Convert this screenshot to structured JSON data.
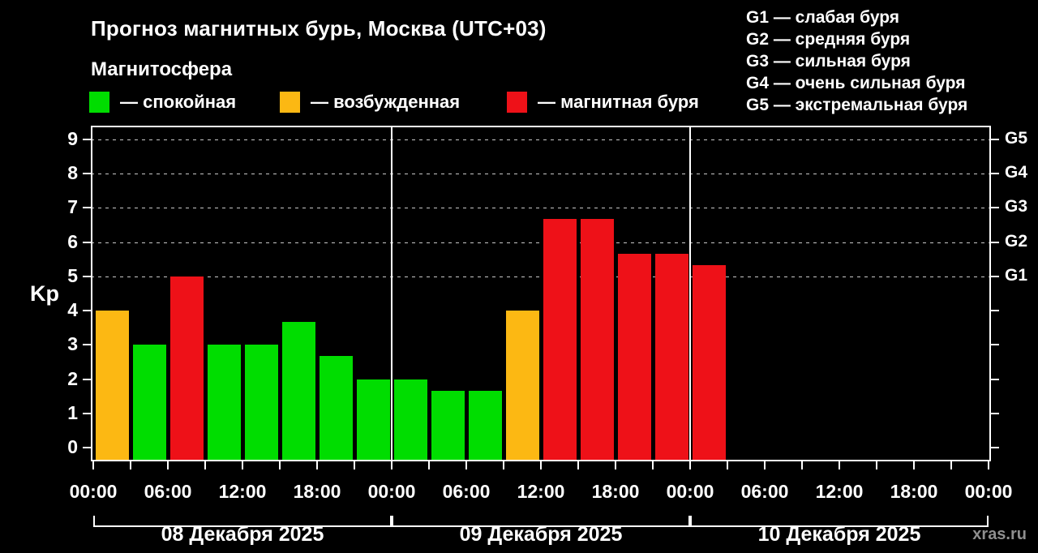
{
  "header": {
    "title": "Прогноз магнитных бурь, Москва (UTC+03)",
    "subtitle": "Магнитосфера"
  },
  "legend": {
    "items": [
      {
        "key": "quiet",
        "label": "— спокойная"
      },
      {
        "key": "unsettled",
        "label": "— возбужденная"
      },
      {
        "key": "storm",
        "label": "— магнитная буря"
      }
    ]
  },
  "storm_scale_legend": [
    {
      "level": "G1",
      "label": "— слабая буря"
    },
    {
      "level": "G2",
      "label": "— средняя буря"
    },
    {
      "level": "G3",
      "label": "— сильная буря"
    },
    {
      "level": "G4",
      "label": "— очень сильная буря"
    },
    {
      "level": "G5",
      "label": "— экстремальная буря"
    }
  ],
  "chart_data": {
    "type": "bar",
    "title": "Прогноз магнитных бурь, Москва (UTC+03)",
    "ylabel": "Kp",
    "ylim": [
      0,
      9
    ],
    "y_display_range": [
      -0.4,
      9.4
    ],
    "yticks": [
      0,
      1,
      2,
      3,
      4,
      5,
      6,
      7,
      8,
      9
    ],
    "grid_levels": [
      5,
      6,
      7,
      8,
      9
    ],
    "grid_style": "dashed",
    "right_axis": [
      {
        "kp": 5,
        "label": "G1"
      },
      {
        "kp": 6,
        "label": "G2"
      },
      {
        "kp": 7,
        "label": "G3"
      },
      {
        "kp": 8,
        "label": "G4"
      },
      {
        "kp": 9,
        "label": "G5"
      }
    ],
    "slot_hours": 3,
    "slots_per_day": 8,
    "time_tick_labels": [
      "00:00",
      "06:00",
      "12:00",
      "18:00",
      "00:00",
      "06:00",
      "12:00",
      "18:00",
      "00:00",
      "06:00",
      "12:00",
      "18:00",
      "00:00"
    ],
    "days": [
      {
        "date": "08 Декабря 2025",
        "bars": [
          {
            "kp": 4.0,
            "state": "unsettled"
          },
          {
            "kp": 3.0,
            "state": "quiet"
          },
          {
            "kp": 5.0,
            "state": "storm"
          },
          {
            "kp": 3.0,
            "state": "quiet"
          },
          {
            "kp": 3.0,
            "state": "quiet"
          },
          {
            "kp": 3.67,
            "state": "quiet"
          },
          {
            "kp": 2.67,
            "state": "quiet"
          },
          {
            "kp": 2.0,
            "state": "quiet"
          }
        ]
      },
      {
        "date": "09 Декабря 2025",
        "bars": [
          {
            "kp": 2.0,
            "state": "quiet"
          },
          {
            "kp": 1.67,
            "state": "quiet"
          },
          {
            "kp": 1.67,
            "state": "quiet"
          },
          {
            "kp": 4.0,
            "state": "unsettled"
          },
          {
            "kp": 6.67,
            "state": "storm"
          },
          {
            "kp": 6.67,
            "state": "storm"
          },
          {
            "kp": 5.67,
            "state": "storm"
          },
          {
            "kp": 5.67,
            "state": "storm"
          }
        ]
      },
      {
        "date": "10 Декабря 2025",
        "bars": [
          {
            "kp": 5.33,
            "state": "storm"
          }
        ]
      }
    ],
    "colors": {
      "quiet": "#00dd00",
      "unsettled": "#fcb813",
      "storm": "#ee1118",
      "axis": "#ffffff",
      "grid": "#c8c8c8",
      "background": "#000000"
    }
  },
  "watermark": "xras.ru"
}
